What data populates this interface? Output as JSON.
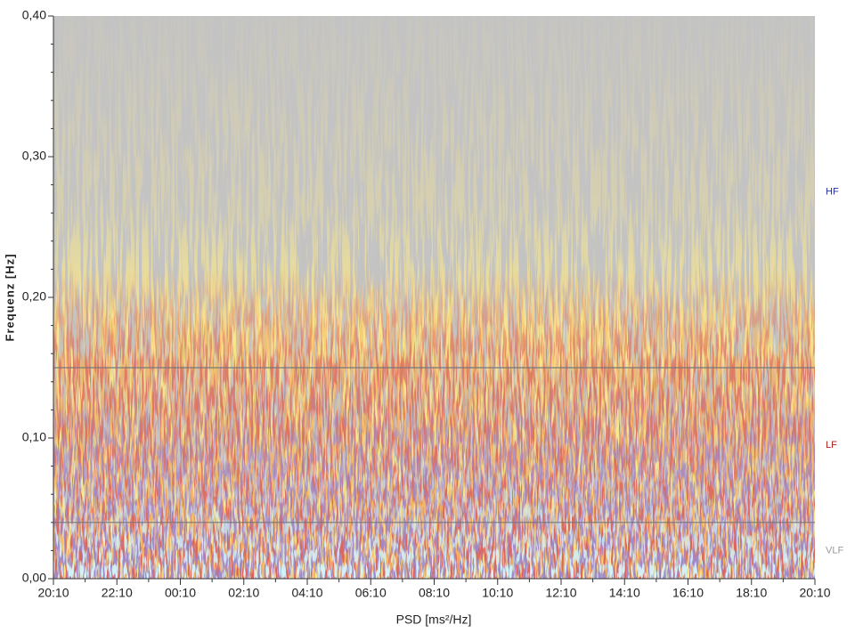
{
  "chart_data": {
    "type": "spectrogram",
    "y_label": "Frequenz [Hz]",
    "x_label": "PSD [ms²/Hz]",
    "ylim": [
      0,
      0.4
    ],
    "yticks": [
      {
        "value": 0,
        "label": "0,00"
      },
      {
        "value": 0.1,
        "label": "0,10"
      },
      {
        "value": 0.2,
        "label": "0,20"
      },
      {
        "value": 0.3,
        "label": "0,30"
      },
      {
        "value": 0.4,
        "label": "0,40"
      }
    ],
    "categories": [
      "20:10",
      "22:10",
      "00:10",
      "02:10",
      "04:10",
      "06:10",
      "08:10",
      "10:10",
      "12:10",
      "14:10",
      "16:10",
      "18:10",
      "20:10"
    ],
    "bands": [
      {
        "name": "VLF",
        "range": [
          0,
          0.04
        ],
        "color": "#9a9a9a"
      },
      {
        "name": "LF",
        "range": [
          0.04,
          0.15
        ],
        "color": "#b02020"
      },
      {
        "name": "HF",
        "range": [
          0.15,
          0.4
        ],
        "color": "#2030a0"
      }
    ],
    "background": "#c3c3c3"
  }
}
